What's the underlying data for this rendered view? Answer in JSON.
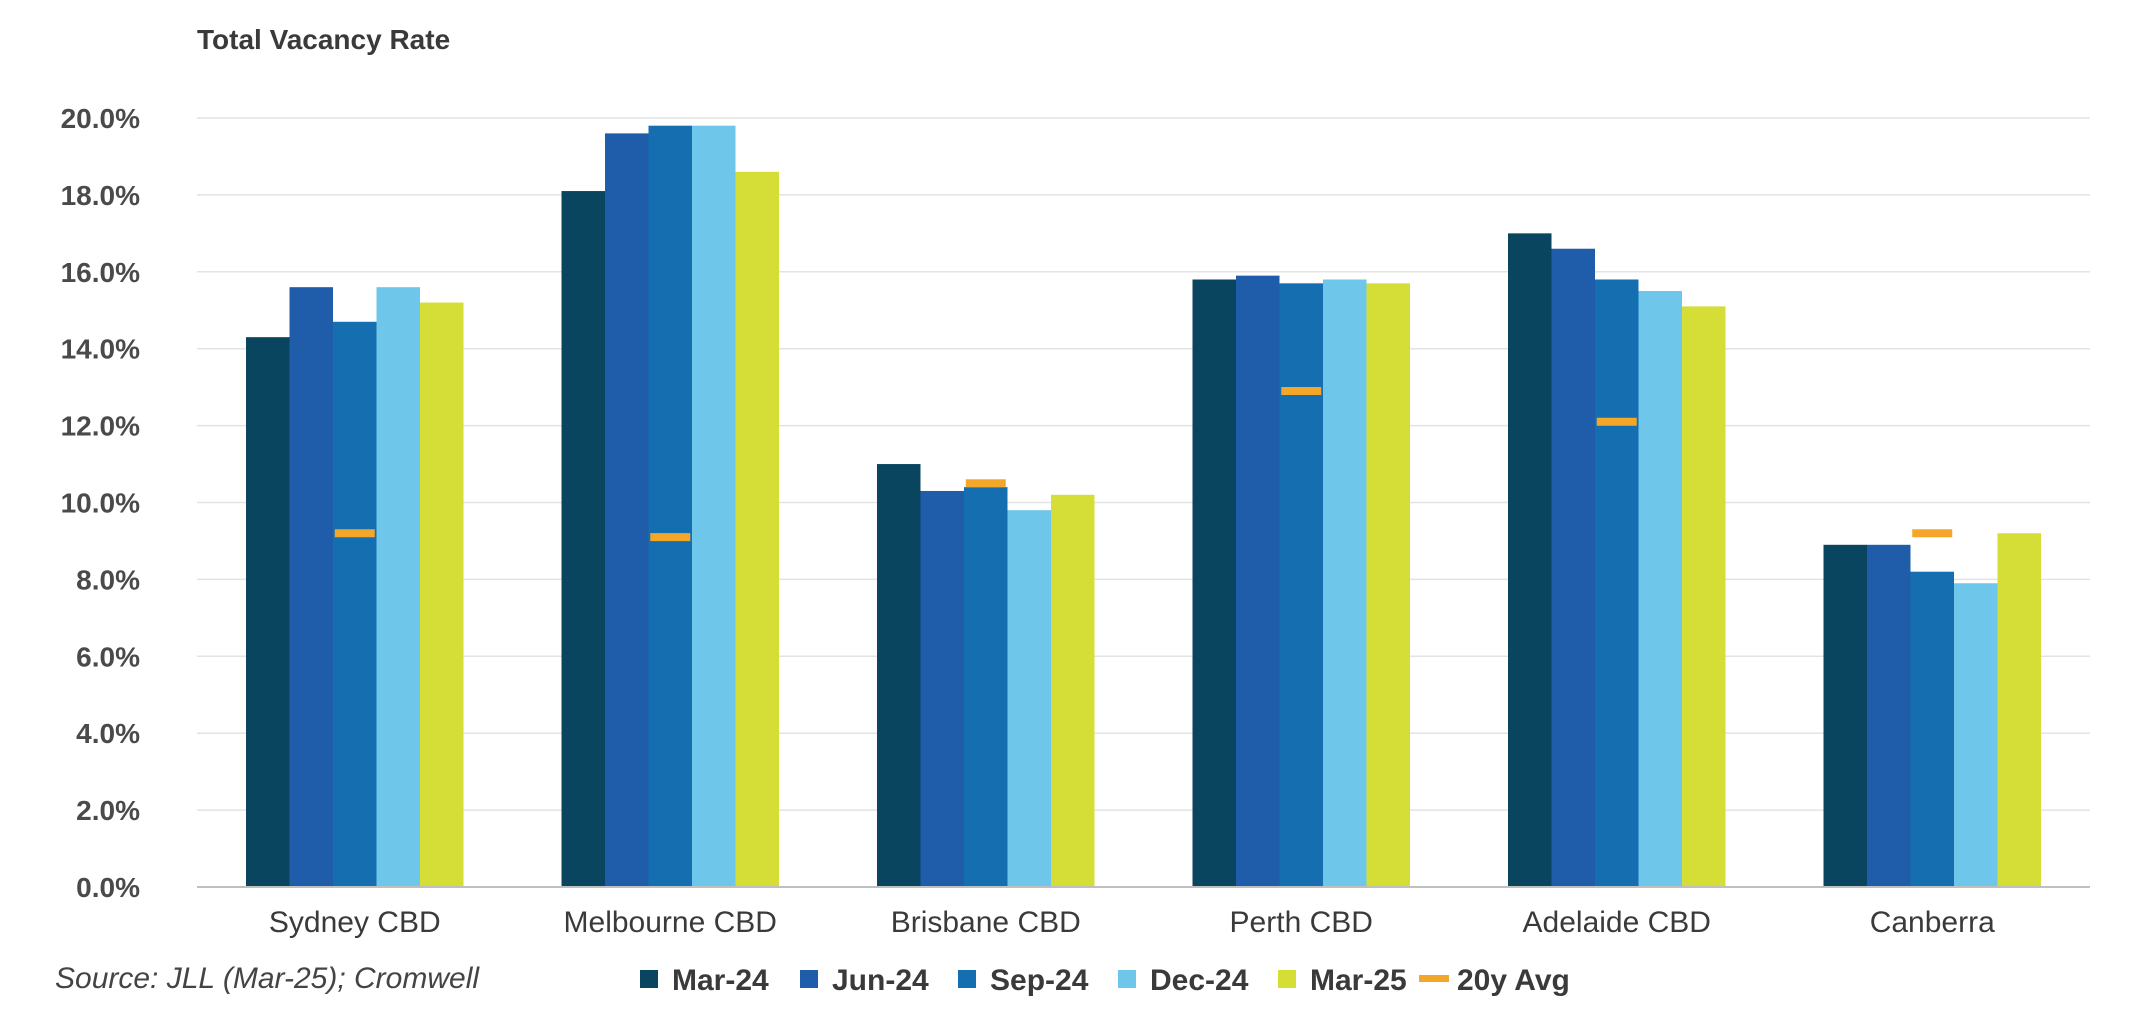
{
  "chart_data": {
    "type": "bar",
    "title": "Total Vacancy Rate",
    "source": "Source: JLL (Mar-25); Cromwell",
    "categories": [
      "Sydney CBD",
      "Melbourne CBD",
      "Brisbane CBD",
      "Perth CBD",
      "Adelaide CBD",
      "Canberra"
    ],
    "ylim": [
      0,
      20
    ],
    "yticks": [
      0,
      2,
      4,
      6,
      8,
      10,
      12,
      14,
      16,
      18,
      20
    ],
    "ytick_format": "percent_1dp",
    "grid": true,
    "legend_position": "bottom",
    "series": [
      {
        "name": "Mar-24",
        "color": "#0a4560",
        "values": [
          14.3,
          18.1,
          11.0,
          15.8,
          17.0,
          8.9
        ]
      },
      {
        "name": "Jun-24",
        "color": "#1f5dab",
        "values": [
          15.6,
          19.6,
          10.3,
          15.9,
          16.6,
          8.9
        ]
      },
      {
        "name": "Sep-24",
        "color": "#156eaf",
        "values": [
          14.7,
          19.8,
          10.4,
          15.7,
          15.8,
          8.2
        ]
      },
      {
        "name": "Dec-24",
        "color": "#6ec6ea",
        "values": [
          15.6,
          19.8,
          9.8,
          15.8,
          15.5,
          7.9
        ]
      },
      {
        "name": "Mar-25",
        "color": "#d5dd37",
        "values": [
          15.2,
          18.6,
          10.2,
          15.7,
          15.1,
          9.2
        ]
      }
    ],
    "avg_marker": {
      "name": "20y Avg",
      "color": "#f4a62a",
      "values": [
        9.2,
        9.1,
        10.5,
        12.9,
        12.1,
        9.2
      ]
    }
  }
}
